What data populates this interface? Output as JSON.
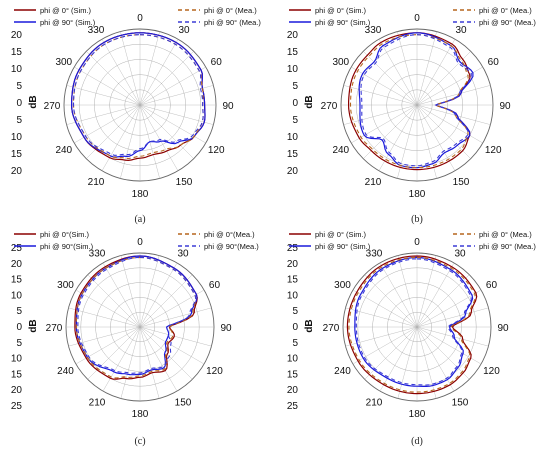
{
  "colors": {
    "sim_phi0": "#8b0000",
    "mea_phi0": "#b5651d",
    "sim_phi90": "#1a1adb",
    "mea_phi90": "#3b3bd6",
    "grid": "#b0b0b0"
  },
  "chart_data": [
    {
      "type": "polar-line",
      "panel_label": "(a)",
      "axis_label": "dB",
      "angle_ticks": [
        "0",
        "30",
        "60",
        "90",
        "120",
        "150",
        "180",
        "210",
        "240",
        "270",
        "300",
        "330"
      ],
      "radial_ticks": [
        "20",
        "15",
        "10",
        "5",
        "0",
        "5",
        "10",
        "15",
        "20"
      ],
      "rlim": [
        -20,
        0
      ],
      "legend": [
        {
          "label": "phi @ 0° (Sim.)",
          "style": "solid",
          "color_key": "sim_phi0"
        },
        {
          "label": "phi @ 90° (Sim.)",
          "style": "solid",
          "color_key": "sim_phi90"
        },
        {
          "label": "phi @ 0° (Mea.)",
          "style": "dashed",
          "color_key": "mea_phi0"
        },
        {
          "label": "phi @ 90° (Mea.)",
          "style": "dashed",
          "color_key": "mea_phi90"
        }
      ],
      "angles": [
        0,
        30,
        60,
        75,
        90,
        105,
        120,
        135,
        150,
        165,
        180,
        195,
        210,
        240,
        270,
        300,
        330
      ],
      "series": [
        {
          "name": "phi @ 0° (Sim.)",
          "color_key": "sim_phi0",
          "dashed": false,
          "values": [
            -1,
            -1,
            -1.5,
            -3,
            -3,
            -2.5,
            -3.5,
            -5,
            -6,
            -6.5,
            -6,
            -5,
            -4,
            -3,
            -2,
            -1.5,
            -1
          ]
        },
        {
          "name": "phi @ 90° (Sim.)",
          "color_key": "sim_phi90",
          "dashed": false,
          "values": [
            -1,
            -1,
            -1.5,
            -3,
            -3,
            -2.5,
            -3.5,
            -6,
            -9,
            -10,
            -8,
            -6,
            -4.5,
            -3,
            -2,
            -1.5,
            -1
          ]
        },
        {
          "name": "phi @ 0° (Mea.)",
          "color_key": "mea_phi0",
          "dashed": true,
          "values": [
            -1.5,
            -1.5,
            -2,
            -3,
            -3.5,
            -3,
            -3.5,
            -5,
            -6.5,
            -7,
            -6.5,
            -5.5,
            -4.5,
            -3.5,
            -2.5,
            -2,
            -1.5
          ]
        },
        {
          "name": "phi @ 90° (Mea.)",
          "color_key": "mea_phi90",
          "dashed": true,
          "values": [
            -1.5,
            -1.5,
            -2,
            -3.5,
            -3.5,
            -3,
            -4,
            -6.5,
            -9.5,
            -10,
            -8.5,
            -6.5,
            -5,
            -3.5,
            -2.5,
            -2,
            -1.5
          ]
        }
      ]
    },
    {
      "type": "polar-line",
      "panel_label": "(b)",
      "axis_label": "dB",
      "angle_ticks": [
        "0",
        "30",
        "60",
        "90",
        "120",
        "150",
        "180",
        "210",
        "240",
        "270",
        "300",
        "330"
      ],
      "radial_ticks": [
        "20",
        "15",
        "10",
        "5",
        "0",
        "5",
        "10",
        "15",
        "20"
      ],
      "rlim": [
        -20,
        0
      ],
      "legend": [
        {
          "label": "phi @ 0° (Sim.)",
          "style": "solid",
          "color_key": "sim_phi0"
        },
        {
          "label": "phi @ 90° (Sim.)",
          "style": "solid",
          "color_key": "sim_phi90"
        },
        {
          "label": "phi @ 0° (Mea.)",
          "style": "dashed",
          "color_key": "mea_phi0"
        },
        {
          "label": "phi @ 90° (Mea.)",
          "style": "dashed",
          "color_key": "mea_phi90"
        }
      ],
      "angles": [
        0,
        30,
        45,
        60,
        75,
        90,
        105,
        120,
        135,
        150,
        165,
        180,
        195,
        210,
        225,
        240,
        270,
        300,
        315,
        330
      ],
      "series": [
        {
          "name": "phi @ 0° (Sim.)",
          "color_key": "sim_phi0",
          "dashed": false,
          "values": [
            -1,
            -1.5,
            -3,
            -4,
            -8,
            -15,
            -9,
            -4,
            -3,
            -3,
            -3,
            -3,
            -3,
            -3,
            -3,
            -2.5,
            -2,
            -1.5,
            -1.5,
            -1
          ]
        },
        {
          "name": "phi @ 90° (Sim.)",
          "color_key": "sim_phi90",
          "dashed": false,
          "values": [
            -1,
            -2,
            -4,
            -3,
            -8,
            -15,
            -9,
            -4,
            -5,
            -5.5,
            -4,
            -3.5,
            -3.5,
            -5,
            -7,
            -4,
            -5,
            -3.5,
            -4,
            -2
          ]
        },
        {
          "name": "phi @ 0° (Mea.)",
          "color_key": "mea_phi0",
          "dashed": true,
          "values": [
            -1.5,
            -2,
            -3.5,
            -4.5,
            -8.5,
            -15,
            -9.5,
            -4.5,
            -3.5,
            -3.5,
            -3.5,
            -3.5,
            -3.5,
            -3.5,
            -3.5,
            -3,
            -2.5,
            -2,
            -2,
            -1.5
          ]
        },
        {
          "name": "phi @ 90° (Mea.)",
          "color_key": "mea_phi90",
          "dashed": true,
          "values": [
            -1.5,
            -2.5,
            -4.5,
            -3.5,
            -8.5,
            -15,
            -9.5,
            -4.5,
            -5.5,
            -6,
            -4.5,
            -4,
            -4,
            -5.5,
            -7.5,
            -4.5,
            -5.5,
            -4,
            -4.5,
            -2.5
          ]
        }
      ]
    },
    {
      "type": "polar-line",
      "panel_label": "(c)",
      "axis_label": "dB",
      "angle_ticks": [
        "0",
        "30",
        "60",
        "90",
        "120",
        "150",
        "180",
        "210",
        "240",
        "270",
        "300",
        "330"
      ],
      "radial_ticks": [
        "25",
        "20",
        "15",
        "10",
        "5",
        "0",
        "5",
        "10",
        "15",
        "20",
        "25"
      ],
      "rlim": [
        -25,
        0
      ],
      "legend": [
        {
          "label": "phi @ 0°(Sim.)",
          "style": "solid",
          "color_key": "sim_phi0"
        },
        {
          "label": "phi @ 90°(Sim.)",
          "style": "solid",
          "color_key": "sim_phi90"
        },
        {
          "label": "phi @ 0°(Mea.)",
          "style": "dashed",
          "color_key": "mea_phi0"
        },
        {
          "label": "phi @ 90°(Mea.)",
          "style": "dashed",
          "color_key": "mea_phi90"
        }
      ],
      "angles": [
        0,
        30,
        60,
        75,
        90,
        105,
        120,
        135,
        150,
        165,
        180,
        195,
        210,
        240,
        270,
        300,
        330
      ],
      "series": [
        {
          "name": "phi @ 0°(Sim.)",
          "color_key": "sim_phi0",
          "dashed": false,
          "values": [
            -1,
            -2,
            -3,
            -6,
            -15,
            -13,
            -14,
            -12,
            -8,
            -9,
            -8,
            -7,
            -5,
            -4,
            -3,
            -2,
            -1.5
          ]
        },
        {
          "name": "phi @ 90°(Sim.)",
          "color_key": "sim_phi90",
          "dashed": false,
          "values": [
            -1,
            -2,
            -3,
            -7,
            -16,
            -15,
            -15,
            -13,
            -9,
            -10,
            -9,
            -8.5,
            -7.5,
            -4.5,
            -3.5,
            -2.5,
            -2
          ]
        },
        {
          "name": "phi @ 0°(Mea.)",
          "color_key": "mea_phi0",
          "dashed": true,
          "values": [
            -1.5,
            -2.5,
            -3.5,
            -6.5,
            -15,
            -13.5,
            -14.5,
            -12.5,
            -8.5,
            -9.5,
            -8.5,
            -7.5,
            -5.5,
            -4.5,
            -3.5,
            -2.5,
            -2
          ]
        },
        {
          "name": "phi @ 90°(Mea.)",
          "color_key": "mea_phi90",
          "dashed": true,
          "values": [
            -1.5,
            -2.5,
            -3.5,
            -7.5,
            -16,
            -15,
            -13,
            -11,
            -9.5,
            -10.5,
            -9.5,
            -9,
            -8,
            -5,
            -4,
            -3,
            -2.5
          ]
        }
      ]
    },
    {
      "type": "polar-line",
      "panel_label": "(d)",
      "axis_label": "dB",
      "angle_ticks": [
        "0",
        "30",
        "60",
        "90",
        "120",
        "150",
        "180",
        "210",
        "240",
        "270",
        "300",
        "330"
      ],
      "radial_ticks": [
        "25",
        "20",
        "15",
        "10",
        "5",
        "0",
        "5",
        "10",
        "15",
        "20",
        "25"
      ],
      "rlim": [
        -25,
        0
      ],
      "legend": [
        {
          "label": "phi @ 0° (Sim.)",
          "style": "solid",
          "color_key": "sim_phi0"
        },
        {
          "label": "phi @ 90° (Sim.)",
          "style": "solid",
          "color_key": "sim_phi90"
        },
        {
          "label": "phi @ 0° (Mea.)",
          "style": "dashed",
          "color_key": "mea_phi0"
        },
        {
          "label": "phi @ 90° (Mea.)",
          "style": "dashed",
          "color_key": "mea_phi90"
        }
      ],
      "angles": [
        0,
        30,
        60,
        75,
        90,
        105,
        120,
        135,
        150,
        165,
        180,
        195,
        210,
        240,
        270,
        300,
        330
      ],
      "series": [
        {
          "name": "phi @ 0° (Sim.)",
          "color_key": "sim_phi0",
          "dashed": false,
          "values": [
            -1,
            -1.5,
            -2,
            -6,
            -13,
            -9,
            -4,
            -3,
            -2.5,
            -2.5,
            -2.5,
            -2.5,
            -2.5,
            -2,
            -1.5,
            -1.5,
            -1
          ]
        },
        {
          "name": "phi @ 90° (Sim.)",
          "color_key": "sim_phi90",
          "dashed": false,
          "values": [
            -1.5,
            -2.5,
            -3.5,
            -8,
            -14,
            -12,
            -7,
            -5.5,
            -4.5,
            -4.5,
            -5,
            -5,
            -5,
            -4,
            -4,
            -3,
            -2
          ]
        },
        {
          "name": "phi @ 0° (Mea.)",
          "color_key": "mea_phi0",
          "dashed": true,
          "values": [
            -1.5,
            -2,
            -2.5,
            -6.5,
            -13.5,
            -9.5,
            -4.5,
            -3.5,
            -3,
            -3,
            -3,
            -3,
            -3,
            -2.5,
            -2,
            -2,
            -1.5
          ]
        },
        {
          "name": "phi @ 90° (Mea.)",
          "color_key": "mea_phi90",
          "dashed": true,
          "values": [
            -2,
            -3,
            -4,
            -8.5,
            -14.5,
            -12.5,
            -7.5,
            -6,
            -5,
            -5,
            -5.5,
            -5.5,
            -5.5,
            -4.5,
            -4.5,
            -3.5,
            -2.5
          ]
        }
      ]
    }
  ]
}
